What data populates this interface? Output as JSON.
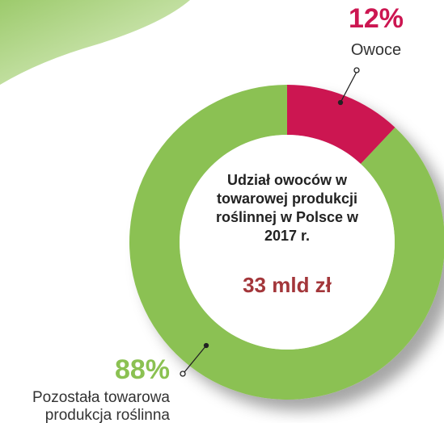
{
  "chart_data": {
    "type": "pie",
    "title": "Udział owoców w towarowej produkcji roślinnej w Polsce w 2017 r.",
    "subtitle": "33 mld zł",
    "categories": [
      "Owoce",
      "Pozostała towarowa produkcja roślinna"
    ],
    "values": [
      12,
      88
    ],
    "value_labels": [
      "12%",
      "88%"
    ],
    "colors": [
      "#cc1651",
      "#8bc152"
    ]
  }
}
